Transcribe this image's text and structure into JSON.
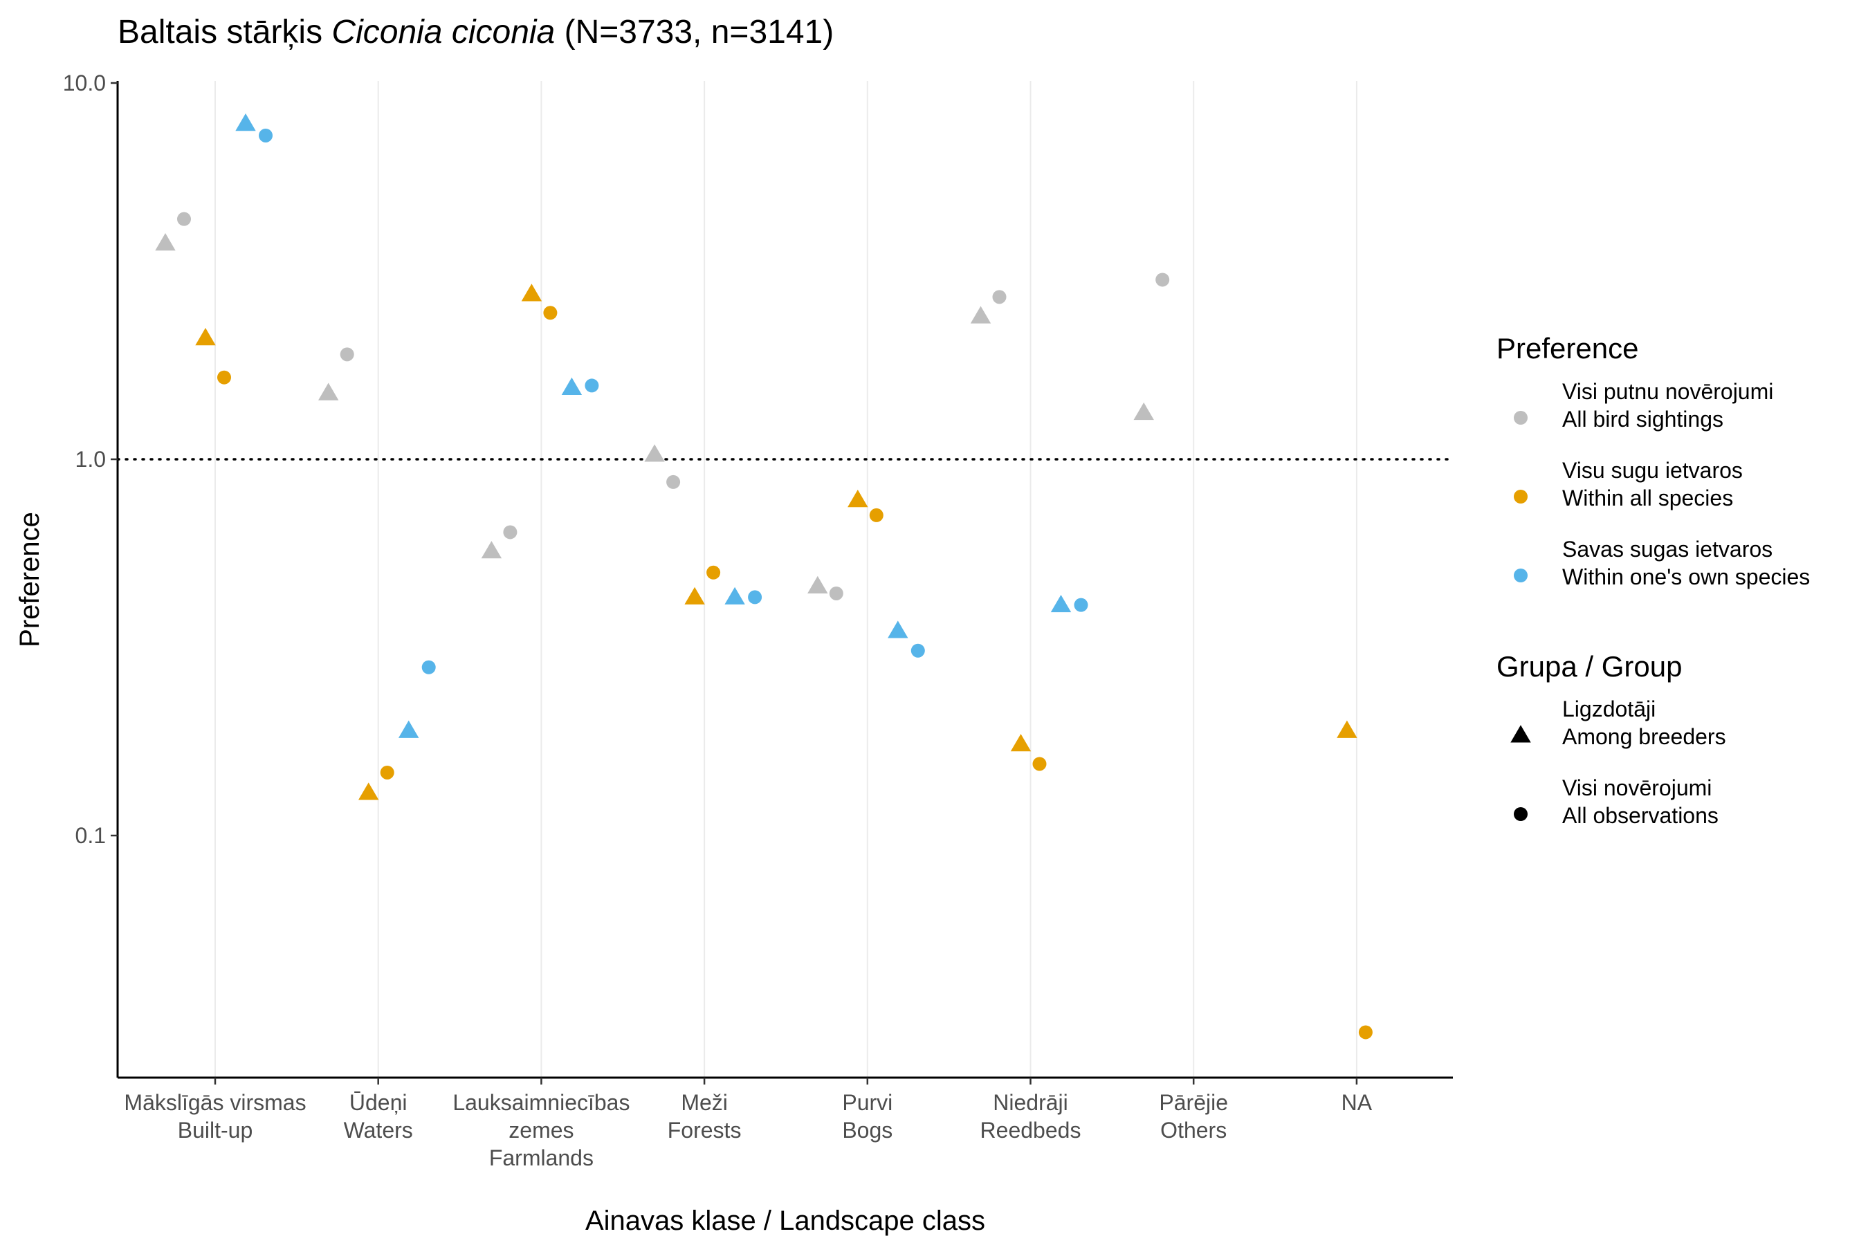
{
  "chart_data": {
    "type": "scatter",
    "title": {
      "prefix": "Baltais stārķis ",
      "italic": "Ciconia ciconia",
      "suffix": " (N=3733, n=3141)"
    },
    "xlabel": "Ainavas klase / Landscape class",
    "ylabel": "Preference",
    "y_scale": "log10",
    "ylim": [
      0.03,
      10
    ],
    "yticks": [
      {
        "value": 0.1,
        "label": "0.1"
      },
      {
        "value": 1.0,
        "label": "1.0"
      },
      {
        "value": 10.0,
        "label": "10.0"
      }
    ],
    "reference_line": {
      "y": 1.0,
      "style": "dotted"
    },
    "grid": "vertical major lines at categories",
    "categories": [
      {
        "lines": [
          "Mākslīgās virsmas",
          "Built-up"
        ]
      },
      {
        "lines": [
          "Ūdeņi",
          "Waters"
        ]
      },
      {
        "lines": [
          "Lauksaimniecības",
          "zemes",
          "Farmlands"
        ]
      },
      {
        "lines": [
          "Meži",
          "Forests"
        ]
      },
      {
        "lines": [
          "Purvi",
          "Bogs"
        ]
      },
      {
        "lines": [
          "Niedrāji",
          "Reedbeds"
        ]
      },
      {
        "lines": [
          "Pārējie",
          "Others"
        ]
      },
      {
        "lines": [
          "NA"
        ]
      }
    ],
    "preference_series": [
      {
        "key": "all_sightings",
        "lines": [
          "Visi putnu novērojumi",
          "All bird sightings"
        ],
        "color": "#BEBEBE"
      },
      {
        "key": "within_all",
        "lines": [
          "Visu sugu ietvaros",
          "Within all species"
        ],
        "color": "#E69F00"
      },
      {
        "key": "within_own",
        "lines": [
          "Savas sugas ietvaros",
          "Within one's own species"
        ],
        "color": "#56B4E9"
      }
    ],
    "group_series": [
      {
        "key": "breeders",
        "shape": "triangle",
        "lines": [
          "Ligzdotāji",
          "Among breeders"
        ]
      },
      {
        "key": "all_obs",
        "shape": "circle",
        "lines": [
          "Visi novērojumi",
          "All observations"
        ]
      }
    ],
    "legend": {
      "position": "right",
      "preference_title": "Preference",
      "group_title": "Grupa / Group"
    },
    "points": [
      {
        "category": 0,
        "preference": "all_sightings",
        "group": "breeders",
        "y": 3.75
      },
      {
        "category": 0,
        "preference": "all_sightings",
        "group": "all_obs",
        "y": 4.35
      },
      {
        "category": 0,
        "preference": "within_all",
        "group": "breeders",
        "y": 2.1
      },
      {
        "category": 0,
        "preference": "within_all",
        "group": "all_obs",
        "y": 1.65
      },
      {
        "category": 0,
        "preference": "within_own",
        "group": "breeders",
        "y": 7.8
      },
      {
        "category": 0,
        "preference": "within_own",
        "group": "all_obs",
        "y": 7.25
      },
      {
        "category": 1,
        "preference": "all_sightings",
        "group": "breeders",
        "y": 1.5
      },
      {
        "category": 1,
        "preference": "all_sightings",
        "group": "all_obs",
        "y": 1.9
      },
      {
        "category": 1,
        "preference": "within_all",
        "group": "breeders",
        "y": 0.13
      },
      {
        "category": 1,
        "preference": "within_all",
        "group": "all_obs",
        "y": 0.147
      },
      {
        "category": 1,
        "preference": "within_own",
        "group": "breeders",
        "y": 0.19
      },
      {
        "category": 1,
        "preference": "within_own",
        "group": "all_obs",
        "y": 0.28
      },
      {
        "category": 2,
        "preference": "all_sightings",
        "group": "breeders",
        "y": 0.57
      },
      {
        "category": 2,
        "preference": "all_sightings",
        "group": "all_obs",
        "y": 0.64
      },
      {
        "category": 2,
        "preference": "within_all",
        "group": "breeders",
        "y": 2.75
      },
      {
        "category": 2,
        "preference": "within_all",
        "group": "all_obs",
        "y": 2.45
      },
      {
        "category": 2,
        "preference": "within_own",
        "group": "breeders",
        "y": 1.55
      },
      {
        "category": 2,
        "preference": "within_own",
        "group": "all_obs",
        "y": 1.57
      },
      {
        "category": 3,
        "preference": "all_sightings",
        "group": "breeders",
        "y": 1.03
      },
      {
        "category": 3,
        "preference": "all_sightings",
        "group": "all_obs",
        "y": 0.87
      },
      {
        "category": 3,
        "preference": "within_all",
        "group": "breeders",
        "y": 0.43
      },
      {
        "category": 3,
        "preference": "within_all",
        "group": "all_obs",
        "y": 0.5
      },
      {
        "category": 3,
        "preference": "within_own",
        "group": "breeders",
        "y": 0.43
      },
      {
        "category": 3,
        "preference": "within_own",
        "group": "all_obs",
        "y": 0.43
      },
      {
        "category": 4,
        "preference": "all_sightings",
        "group": "breeders",
        "y": 0.46
      },
      {
        "category": 4,
        "preference": "all_sightings",
        "group": "all_obs",
        "y": 0.44
      },
      {
        "category": 4,
        "preference": "within_all",
        "group": "breeders",
        "y": 0.78
      },
      {
        "category": 4,
        "preference": "within_all",
        "group": "all_obs",
        "y": 0.71
      },
      {
        "category": 4,
        "preference": "within_own",
        "group": "breeders",
        "y": 0.35
      },
      {
        "category": 4,
        "preference": "within_own",
        "group": "all_obs",
        "y": 0.31
      },
      {
        "category": 5,
        "preference": "all_sightings",
        "group": "breeders",
        "y": 2.4
      },
      {
        "category": 5,
        "preference": "all_sightings",
        "group": "all_obs",
        "y": 2.7
      },
      {
        "category": 5,
        "preference": "within_all",
        "group": "breeders",
        "y": 0.175
      },
      {
        "category": 5,
        "preference": "within_all",
        "group": "all_obs",
        "y": 0.155
      },
      {
        "category": 5,
        "preference": "within_own",
        "group": "breeders",
        "y": 0.41
      },
      {
        "category": 5,
        "preference": "within_own",
        "group": "all_obs",
        "y": 0.41
      },
      {
        "category": 6,
        "preference": "all_sightings",
        "group": "breeders",
        "y": 1.33
      },
      {
        "category": 6,
        "preference": "all_sightings",
        "group": "all_obs",
        "y": 3.0
      },
      {
        "category": 7,
        "preference": "within_all",
        "group": "breeders",
        "y": 0.19
      },
      {
        "category": 7,
        "preference": "within_all",
        "group": "all_obs",
        "y": 0.03
      }
    ]
  }
}
